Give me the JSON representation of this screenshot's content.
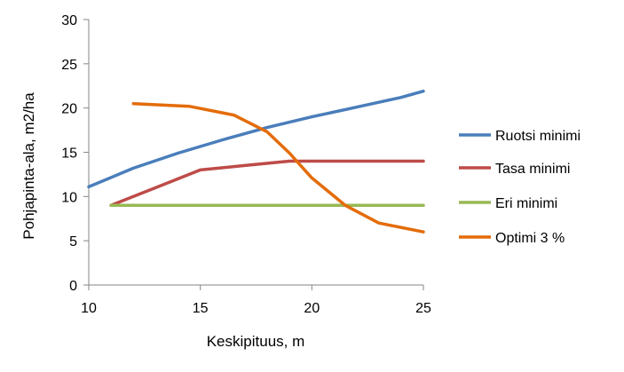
{
  "chart_data": {
    "type": "line",
    "xlabel": "Keskipituus, m",
    "ylabel": "Pohjapinta-ala, m2/ha",
    "xlim": [
      10,
      25
    ],
    "ylim": [
      0,
      30
    ],
    "x_ticks": [
      10,
      15,
      20,
      25
    ],
    "y_ticks": [
      0,
      5,
      10,
      15,
      20,
      25,
      30
    ],
    "grid": false,
    "legend_position": "right",
    "series": [
      {
        "name": "Ruotsi minimi",
        "color": "#4a7ebb",
        "points": [
          [
            10,
            11.1
          ],
          [
            12,
            13.2
          ],
          [
            14,
            14.9
          ],
          [
            16,
            16.4
          ],
          [
            18,
            17.8
          ],
          [
            20,
            19.0
          ],
          [
            22,
            20.1
          ],
          [
            24,
            21.2
          ],
          [
            25,
            21.9
          ]
        ]
      },
      {
        "name": "Tasa minimi",
        "color": "#be4b48",
        "points": [
          [
            11,
            9.0
          ],
          [
            13,
            11.0
          ],
          [
            15,
            13.0
          ],
          [
            17,
            13.5
          ],
          [
            19,
            14.0
          ],
          [
            21,
            14.0
          ],
          [
            23,
            14.0
          ],
          [
            25,
            14.0
          ]
        ]
      },
      {
        "name": "Eri minimi",
        "color": "#98b954",
        "points": [
          [
            11,
            9.0
          ],
          [
            13,
            9.0
          ],
          [
            15,
            9.0
          ],
          [
            17,
            9.0
          ],
          [
            19,
            9.0
          ],
          [
            21,
            9.0
          ],
          [
            23,
            9.0
          ],
          [
            25,
            9.0
          ]
        ]
      },
      {
        "name": "Optimi 3 %",
        "color": "#e46c0a",
        "points": [
          [
            12,
            20.5
          ],
          [
            14.5,
            20.2
          ],
          [
            16.5,
            19.2
          ],
          [
            18,
            17.3
          ],
          [
            19,
            14.9
          ],
          [
            20,
            12.1
          ],
          [
            21.5,
            9.0
          ],
          [
            23,
            7.0
          ],
          [
            25,
            6.0
          ]
        ]
      }
    ]
  }
}
